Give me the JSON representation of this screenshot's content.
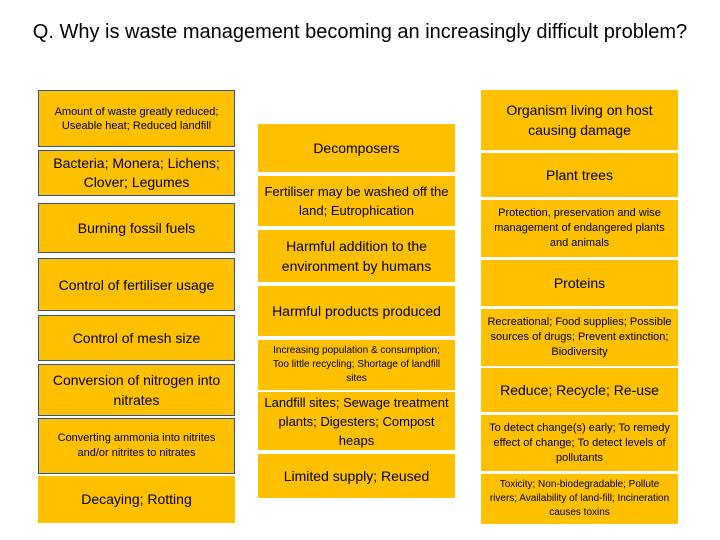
{
  "title": "Q. Why is waste management becoming an increasingly difficult problem?",
  "column1": [
    "Amount of waste greatly reduced; Useable heat; Reduced landfill",
    "Bacteria; Monera; Lichens; Clover; Legumes",
    "Burning fossil fuels",
    "Control of fertiliser usage",
    "Control of mesh size",
    "Conversion of nitrogen into nitrates",
    "Converting ammonia into nitrites and/or nitrites to nitrates",
    "Decaying; Rotting"
  ],
  "column2": [
    "Decomposers",
    "Fertiliser may be washed off the land; Eutrophication",
    "Harmful addition to the environment by humans",
    "Harmful products produced",
    "Increasing population & consumption; Too little recycling; Shortage of landfill sites",
    "Landfill sites; Sewage treatment plants; Digesters; Compost heaps",
    "Limited supply; Reused"
  ],
  "column3": [
    "Organism living on host causing damage",
    "Plant trees",
    "Protection, preservation and wise management of endangered plants and animals",
    "Proteins",
    "Recreational; Food supplies; Possible sources of drugs; Prevent extinction; Biodiversity",
    "Reduce; Recycle; Re-use",
    "To detect change(s) early; To remedy effect of change; To detect levels of pollutants",
    "Toxicity; Non-biodegradable; Pollute rivers; Availability of land-fill; Incineration causes toxins"
  ],
  "colors": {
    "card": "#FFC000",
    "border": "#2E5597",
    "text": "#000000"
  }
}
